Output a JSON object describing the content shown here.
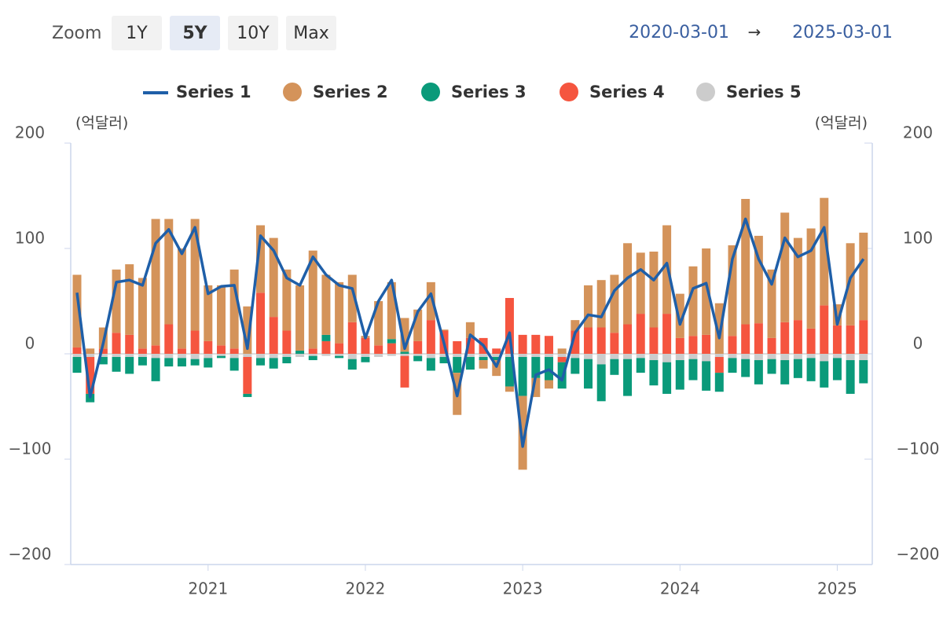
{
  "zoom": {
    "label": "Zoom",
    "buttons": [
      "1Y",
      "5Y",
      "10Y",
      "Max"
    ],
    "selected": 1
  },
  "range": {
    "from": "2020-03-01",
    "separator": "→",
    "to": "2025-03-01"
  },
  "chart_data": {
    "type": "bar",
    "stacking": "normal",
    "y_unit_label": "(억달러)",
    "y2_unit_label": "(억달러)",
    "categories": [
      null,
      null,
      null,
      null,
      null,
      null,
      null,
      null,
      null,
      null,
      "2021",
      null,
      null,
      null,
      null,
      null,
      null,
      null,
      null,
      null,
      null,
      null,
      "2022",
      null,
      null,
      null,
      null,
      null,
      null,
      null,
      null,
      null,
      null,
      null,
      "2023",
      null,
      null,
      null,
      null,
      null,
      null,
      null,
      null,
      null,
      null,
      null,
      "2024",
      null,
      null,
      null,
      null,
      null,
      null,
      null,
      null,
      null,
      null,
      null,
      "2025",
      null,
      null
    ],
    "ylim": [
      -200,
      200
    ],
    "yticks": [
      200,
      100,
      0,
      {
        "value": -100,
        "label": "−100"
      },
      {
        "value": -200,
        "label": "−200"
      }
    ],
    "y2lim": [
      -200,
      200
    ],
    "y2ticks": [
      200,
      100,
      0,
      {
        "value": -100,
        "label": "−100"
      },
      {
        "value": -200,
        "label": "−200"
      }
    ],
    "series": [
      {
        "name": "Series 1",
        "type": "line",
        "color": "#1f5fa8",
        "values": [
          58,
          -41,
          10,
          68,
          70,
          65,
          105,
          118,
          95,
          120,
          57,
          64,
          65,
          5,
          112,
          98,
          72,
          65,
          92,
          75,
          65,
          62,
          15,
          50,
          70,
          5,
          40,
          57,
          10,
          -40,
          18,
          8,
          -12,
          20,
          -88,
          -20,
          -15,
          -25,
          20,
          37,
          35,
          60,
          72,
          80,
          70,
          86,
          28,
          62,
          67,
          15,
          90,
          128,
          90,
          66,
          110,
          92,
          98,
          120,
          28,
          72,
          90
        ]
      },
      {
        "name": "Series 2",
        "type": "column",
        "color": "#d4935a",
        "values": [
          69,
          5,
          20,
          60,
          67,
          67,
          120,
          100,
          95,
          106,
          53,
          57,
          75,
          45,
          64,
          75,
          58,
          62,
          93,
          57,
          58,
          45,
          2,
          42,
          54,
          32,
          30,
          36,
          1,
          -40,
          15,
          -8,
          -15,
          -5,
          -70,
          -18,
          -8,
          5,
          10,
          40,
          45,
          55,
          77,
          58,
          72,
          84,
          42,
          66,
          82,
          48,
          86,
          119,
          83,
          65,
          104,
          78,
          95,
          102,
          20,
          78,
          83
        ]
      },
      {
        "name": "Series 3",
        "type": "column",
        "color": "#0a9a7a",
        "values": [
          -15,
          -8,
          -7,
          -14,
          -16,
          -8,
          -22,
          -8,
          -8,
          -6,
          -9,
          -2,
          -12,
          -3,
          -7,
          -10,
          -6,
          3,
          -4,
          6,
          -2,
          -10,
          -5,
          0,
          4,
          2,
          -5,
          -12,
          -6,
          -15,
          -12,
          -3,
          -3,
          -28,
          -37,
          -20,
          -22,
          -25,
          -15,
          -28,
          -35,
          -15,
          -35,
          -14,
          -24,
          -30,
          -28,
          -20,
          -28,
          -18,
          -14,
          -17,
          -23,
          -14,
          -23,
          -18,
          -22,
          -25,
          -21,
          -32,
          -22
        ]
      },
      {
        "name": "Series 4",
        "type": "column",
        "color": "#f5553f",
        "values": [
          6,
          -35,
          5,
          20,
          18,
          5,
          8,
          28,
          5,
          22,
          12,
          8,
          5,
          -35,
          58,
          35,
          22,
          0,
          5,
          12,
          10,
          30,
          15,
          8,
          10,
          -30,
          12,
          32,
          22,
          12,
          15,
          15,
          5,
          53,
          18,
          18,
          17,
          -5,
          22,
          25,
          25,
          20,
          28,
          38,
          25,
          38,
          15,
          17,
          18,
          -15,
          17,
          28,
          29,
          15,
          30,
          32,
          24,
          46,
          27,
          27,
          32
        ]
      },
      {
        "name": "Series 5",
        "type": "column",
        "color": "#cccccc",
        "values": [
          -3,
          -3,
          -3,
          -3,
          -3,
          -3,
          -4,
          -4,
          -4,
          -5,
          -4,
          -2,
          -4,
          -3,
          -4,
          -4,
          -3,
          -3,
          -2,
          -2,
          -2,
          -5,
          -3,
          -3,
          -2,
          -2,
          -2,
          -4,
          -3,
          -3,
          -3,
          -3,
          -3,
          -3,
          -3,
          -3,
          -3,
          -3,
          -4,
          -5,
          -10,
          -5,
          -5,
          -4,
          -6,
          -8,
          -6,
          -5,
          -7,
          -3,
          -4,
          -5,
          -6,
          -5,
          -6,
          -5,
          -4,
          -7,
          -4,
          -6,
          -6
        ]
      }
    ],
    "legend": "top"
  }
}
